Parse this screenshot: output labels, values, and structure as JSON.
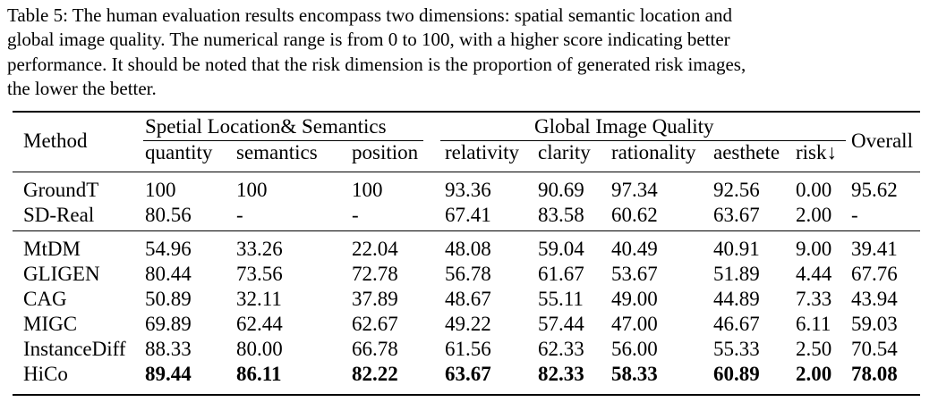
{
  "caption": "Table 5: The human evaluation results encompass two dimensions: spatial semantic location and\nglobal image quality. The numerical range is from 0 to 100, with a higher score indicating better\nperformance. It should be noted that the risk dimension is the proportion of generated risk images,\nthe lower the better.",
  "header": {
    "method": "Method",
    "group1": "Spetial Location& Semantics",
    "group2": "Global Image Quality",
    "overall": "Overall",
    "columns": [
      "quantity",
      "semantics",
      "position",
      "relativity",
      "clarity",
      "rationality",
      "aesthete",
      "risk↓"
    ]
  },
  "rows": [
    {
      "method": "GroundT",
      "values": [
        "100",
        "100",
        "100",
        "93.36",
        "90.69",
        "97.34",
        "92.56",
        "0.00",
        "95.62"
      ],
      "bold": false
    },
    {
      "method": "SD-Real",
      "values": [
        "80.56",
        "-",
        "-",
        "67.41",
        "83.58",
        "60.62",
        "63.67",
        "2.00",
        "-"
      ],
      "bold": false
    },
    {
      "method": "MtDM",
      "values": [
        "54.96",
        "33.26",
        "22.04",
        "48.08",
        "59.04",
        "40.49",
        "40.91",
        "9.00",
        "39.41"
      ],
      "bold": false
    },
    {
      "method": "GLIGEN",
      "values": [
        "80.44",
        "73.56",
        "72.78",
        "56.78",
        "61.67",
        "53.67",
        "51.89",
        "4.44",
        "67.76"
      ],
      "bold": false
    },
    {
      "method": "CAG",
      "values": [
        "50.89",
        "32.11",
        "37.89",
        "48.67",
        "55.11",
        "49.00",
        "44.89",
        "7.33",
        "43.94"
      ],
      "bold": false
    },
    {
      "method": "MIGC",
      "values": [
        "69.89",
        "62.44",
        "62.67",
        "49.22",
        "57.44",
        "47.00",
        "46.67",
        "6.11",
        "59.03"
      ],
      "bold": false
    },
    {
      "method": "InstanceDiff",
      "values": [
        "88.33",
        "80.00",
        "66.78",
        "61.56",
        "62.33",
        "56.00",
        "55.33",
        "2.50",
        "70.54"
      ],
      "bold": false
    },
    {
      "method": "HiCo",
      "values": [
        "89.44",
        "86.11",
        "82.22",
        "63.67",
        "82.33",
        "58.33",
        "60.89",
        "2.00",
        "78.08"
      ],
      "bold": true
    }
  ]
}
